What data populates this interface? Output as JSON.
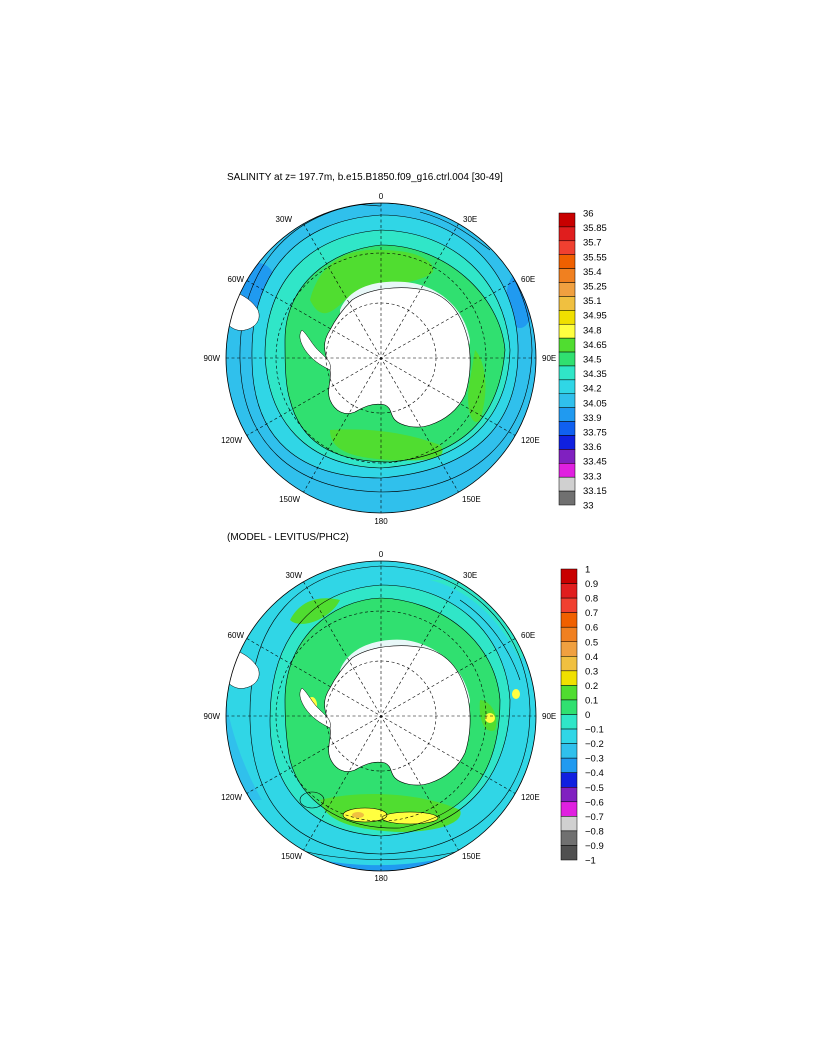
{
  "colors": {
    "continent": "#ffffff",
    "ice_shelf": "#ffffff",
    "grid": "#000000",
    "contour": "#000000"
  },
  "panel1": {
    "title": "SALINITY at z= 197.7m, b.e15.B1850.f09_g16.ctrl.004 [30-49]",
    "labels": {
      "top": "0",
      "bottom": "180",
      "left": "90W",
      "right": "90E",
      "l30": "30W",
      "r30": "30E",
      "l60": "60W",
      "r60": "60E",
      "l120": "120W",
      "r120": "120E",
      "l150": "150W",
      "r150": "150E"
    },
    "levels": [
      "36",
      "35.85",
      "35.7",
      "35.55",
      "35.4",
      "35.25",
      "35.1",
      "34.95",
      "34.8",
      "34.65",
      "34.5",
      "34.35",
      "34.2",
      "34.05",
      "33.9",
      "33.75",
      "33.6",
      "33.45",
      "33.3",
      "33.15",
      "33"
    ],
    "colorbar": [
      "#c80000",
      "#e01e1e",
      "#f04030",
      "#f06000",
      "#f08020",
      "#f0a040",
      "#f0c040",
      "#f0e000",
      "#ffff40",
      "#50dd30",
      "#30e070",
      "#30e6c8",
      "#30d6e6",
      "#30c0ec",
      "#209af0",
      "#1060f0",
      "#1020e0",
      "#8020c0",
      "#e020e0",
      "#d0d0d0",
      "#707070"
    ]
  },
  "panel2": {
    "title": "(MODEL - LEVITUS/PHC2)",
    "labels": {
      "top": "0",
      "bottom": "180",
      "left": "90W",
      "right": "90E",
      "l30": "30W",
      "r30": "30E",
      "l60": "60W",
      "r60": "60E",
      "l120": "120W",
      "r120": "120E",
      "l150": "150W",
      "r150": "150E"
    },
    "levels": [
      "1",
      "0.9",
      "0.8",
      "0.7",
      "0.6",
      "0.5",
      "0.4",
      "0.3",
      "0.2",
      "0.1",
      "0",
      "−0.1",
      "−0.2",
      "−0.3",
      "−0.4",
      "−0.5",
      "−0.6",
      "−0.7",
      "−0.8",
      "−0.9",
      "−1"
    ],
    "colorbar": [
      "#c80000",
      "#e01e1e",
      "#f04030",
      "#f06000",
      "#f08020",
      "#f0a040",
      "#f0c040",
      "#f0e000",
      "#50dd30",
      "#30e070",
      "#30e6c8",
      "#30d6e6",
      "#30c0ec",
      "#209af0",
      "#1020e0",
      "#8020c0",
      "#e020e0",
      "#d0d0d0",
      "#707070",
      "#505050"
    ]
  }
}
